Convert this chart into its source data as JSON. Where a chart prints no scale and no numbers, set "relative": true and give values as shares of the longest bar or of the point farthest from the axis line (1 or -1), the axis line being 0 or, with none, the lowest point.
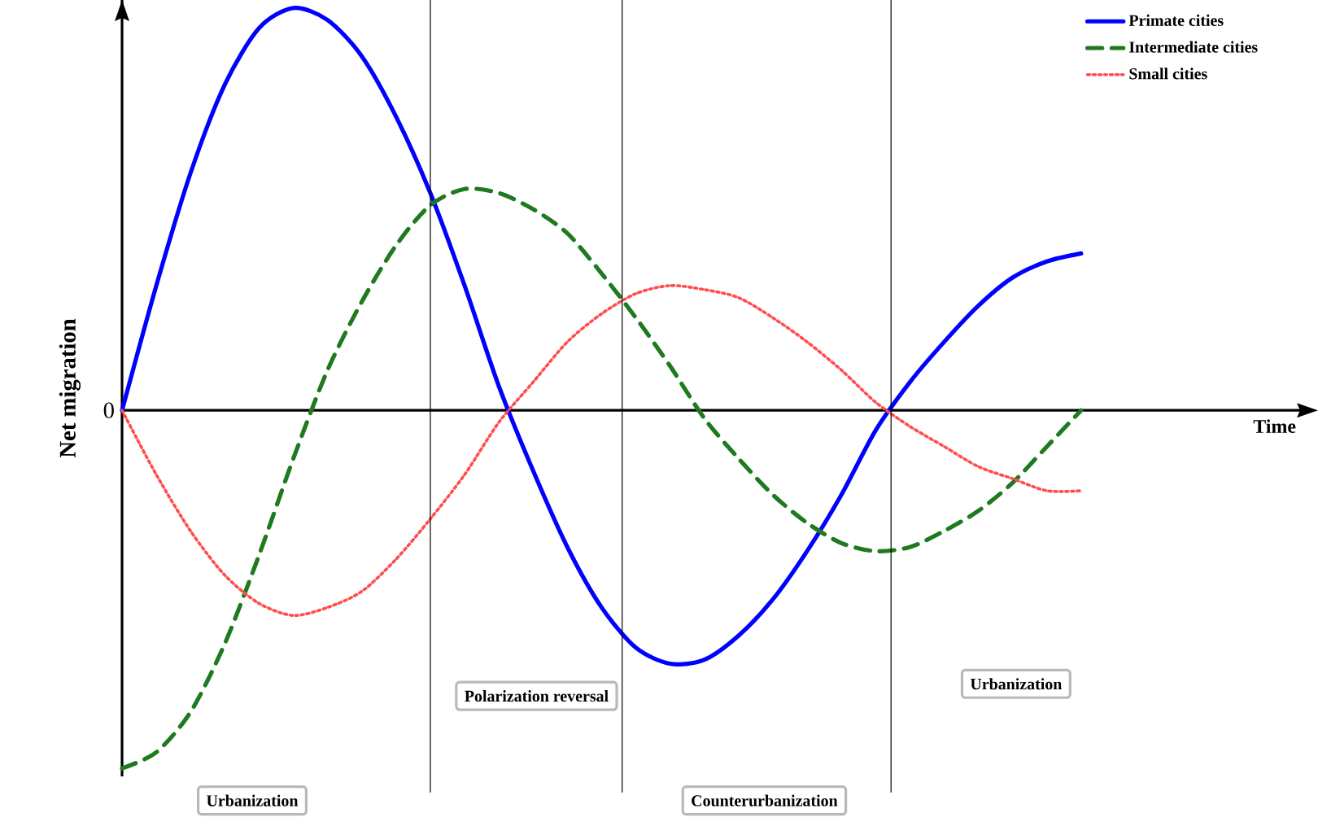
{
  "chart_data": {
    "type": "line",
    "relative": true,
    "ylabel": "Net migration",
    "categories": [
      null,
      null,
      null,
      null,
      null,
      null,
      null,
      null,
      null,
      null,
      null,
      null,
      null,
      null,
      null,
      null,
      null,
      null,
      null,
      null,
      null,
      null,
      null,
      null,
      null,
      null,
      null,
      null,
      null
    ],
    "series": [
      {
        "name": "Primate cities",
        "color": "#0000ff",
        "line_style": "solid",
        "values": [
          0,
          0.31,
          0.59,
          0.81,
          0.95,
          1.0,
          0.97,
          0.88,
          0.73,
          0.54,
          0.31,
          0.06,
          -0.15,
          -0.34,
          -0.49,
          -0.59,
          -0.63,
          -0.62,
          -0.56,
          -0.47,
          -0.35,
          -0.21,
          -0.05,
          0.07,
          0.17,
          0.26,
          0.33,
          0.37,
          0.39
        ]
      },
      {
        "name": "Intermediate cities",
        "color": "#1f7a1f",
        "line_style": "dashed",
        "values": [
          -0.89,
          -0.85,
          -0.75,
          -0.58,
          -0.36,
          -0.12,
          0.1,
          0.27,
          0.41,
          0.51,
          0.55,
          0.54,
          0.5,
          0.44,
          0.34,
          0.23,
          0.11,
          -0.02,
          -0.12,
          -0.21,
          -0.28,
          -0.33,
          -0.35,
          -0.34,
          -0.3,
          -0.25,
          -0.18,
          -0.09,
          0
        ]
      },
      {
        "name": "Small cities",
        "color": "#ff4d4d",
        "line_style": "dotted",
        "values": [
          0,
          -0.16,
          -0.3,
          -0.41,
          -0.48,
          -0.51,
          -0.49,
          -0.45,
          -0.37,
          -0.27,
          -0.16,
          -0.03,
          0.07,
          0.17,
          0.24,
          0.29,
          0.31,
          0.3,
          0.28,
          0.23,
          0.17,
          0.1,
          0.02,
          -0.04,
          -0.09,
          -0.14,
          -0.17,
          -0.2,
          -0.2
        ]
      }
    ],
    "annotations": [
      "Urbanization",
      "Polarization reversal",
      "Counterurbanization",
      "Urbanization",
      "0",
      "Time"
    ],
    "legend": "top right"
  }
}
